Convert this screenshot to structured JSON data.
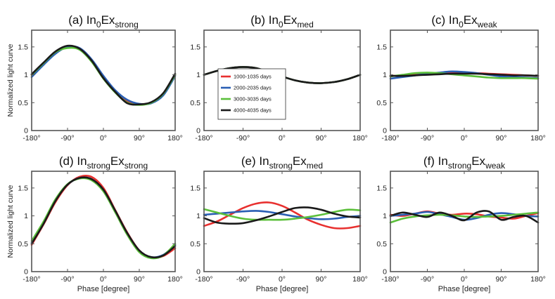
{
  "colors": {
    "series": [
      "#e8302f",
      "#2a5fb4",
      "#5bbf3a",
      "#1a1a1a"
    ],
    "axis": "#555555"
  },
  "legend": [
    "1000-1035 days",
    "2000-2035 days",
    "3000-3035 days",
    "4000-4035 days"
  ],
  "shared_axes": {
    "x_ticks": [
      "-180°",
      "-90°",
      "0°",
      "90°",
      "180°"
    ],
    "x_tick_values": [
      -180,
      -90,
      0,
      90,
      180
    ],
    "y_ticks": [
      "0",
      "0.5",
      "1",
      "1.5"
    ],
    "y_tick_values": [
      0,
      0.5,
      1,
      1.5
    ],
    "xlabel": "Phase [degree]",
    "ylabel": "Normalized light curve"
  },
  "chart_data": [
    {
      "type": "line",
      "title_prefix": "(a) In",
      "title_sub1": "0",
      "title_mid": "Ex",
      "title_sub2": "strong",
      "xlim": [
        -180,
        180
      ],
      "ylim": [
        0,
        1.8
      ],
      "show_ylabel": true,
      "show_xlabel": false,
      "x": [
        -180,
        -150,
        -120,
        -90,
        -60,
        -30,
        0,
        30,
        60,
        90,
        120,
        150,
        180
      ],
      "series": [
        {
          "name": "1000-1035 days",
          "values": [
            1.0,
            1.2,
            1.4,
            1.49,
            1.46,
            1.25,
            0.95,
            0.7,
            0.52,
            0.47,
            0.5,
            0.65,
            1.0
          ]
        },
        {
          "name": "2000-2035 days",
          "values": [
            0.96,
            1.18,
            1.38,
            1.5,
            1.48,
            1.28,
            0.98,
            0.72,
            0.55,
            0.48,
            0.49,
            0.63,
            0.98
          ]
        },
        {
          "name": "3000-3035 days",
          "values": [
            1.0,
            1.21,
            1.41,
            1.48,
            1.45,
            1.24,
            0.93,
            0.68,
            0.5,
            0.46,
            0.5,
            0.66,
            1.0
          ]
        },
        {
          "name": "4000-4035 days",
          "values": [
            1.01,
            1.22,
            1.42,
            1.52,
            1.47,
            1.26,
            0.94,
            0.69,
            0.49,
            0.47,
            0.51,
            0.67,
            1.02
          ]
        }
      ]
    },
    {
      "type": "line",
      "title_prefix": "(b) In",
      "title_sub1": "0",
      "title_mid": "Ex",
      "title_sub2": "med",
      "xlim": [
        -180,
        180
      ],
      "ylim": [
        0,
        1.8
      ],
      "show_ylabel": false,
      "show_xlabel": false,
      "legend": true,
      "x": [
        -180,
        -150,
        -120,
        -90,
        -60,
        -30,
        0,
        30,
        60,
        90,
        120,
        150,
        180
      ],
      "series": [
        {
          "name": "1000-1035 days",
          "values": [
            1.0,
            1.07,
            1.12,
            1.14,
            1.12,
            1.05,
            0.97,
            0.9,
            0.86,
            0.85,
            0.87,
            0.92,
            1.0
          ]
        },
        {
          "name": "2000-2035 days",
          "values": [
            1.0,
            1.07,
            1.12,
            1.14,
            1.12,
            1.05,
            0.97,
            0.9,
            0.86,
            0.85,
            0.87,
            0.92,
            1.0
          ]
        },
        {
          "name": "3000-3035 days",
          "values": [
            1.0,
            1.07,
            1.12,
            1.14,
            1.12,
            1.05,
            0.97,
            0.9,
            0.86,
            0.85,
            0.87,
            0.92,
            1.0
          ]
        },
        {
          "name": "4000-4035 days",
          "values": [
            1.0,
            1.07,
            1.12,
            1.14,
            1.12,
            1.05,
            0.97,
            0.9,
            0.86,
            0.85,
            0.87,
            0.92,
            1.0
          ]
        }
      ]
    },
    {
      "type": "line",
      "title_prefix": "(c) In",
      "title_sub1": "0",
      "title_mid": "Ex",
      "title_sub2": "weak",
      "xlim": [
        -180,
        180
      ],
      "ylim": [
        0,
        1.8
      ],
      "show_ylabel": false,
      "show_xlabel": false,
      "x": [
        -180,
        -150,
        -120,
        -90,
        -60,
        -30,
        0,
        30,
        60,
        90,
        120,
        150,
        180
      ],
      "series": [
        {
          "name": "1000-1035 days",
          "values": [
            0.98,
            0.99,
            1.01,
            1.02,
            1.03,
            1.04,
            1.04,
            1.03,
            1.02,
            1.01,
            1.0,
            0.99,
            0.98
          ]
        },
        {
          "name": "2000-2035 days",
          "values": [
            0.93,
            0.96,
            0.99,
            1.02,
            1.04,
            1.06,
            1.05,
            1.03,
            1.0,
            0.97,
            0.96,
            0.95,
            0.94
          ]
        },
        {
          "name": "3000-3035 days",
          "values": [
            0.97,
            1.0,
            1.03,
            1.04,
            1.03,
            1.01,
            0.99,
            0.97,
            0.95,
            0.94,
            0.94,
            0.94,
            0.93
          ]
        },
        {
          "name": "4000-4035 days",
          "values": [
            0.98,
            0.98,
            0.99,
            1.0,
            1.01,
            1.02,
            1.02,
            1.02,
            1.01,
            1.0,
            0.99,
            0.99,
            0.98
          ]
        }
      ]
    },
    {
      "type": "line",
      "title_prefix": "(d) In",
      "title_sub1": "strong",
      "title_mid": "Ex",
      "title_sub2": "strong",
      "xlim": [
        -180,
        180
      ],
      "ylim": [
        0,
        1.8
      ],
      "show_ylabel": true,
      "show_xlabel": false,
      "x": [
        -180,
        -150,
        -120,
        -90,
        -60,
        -30,
        0,
        30,
        60,
        90,
        120,
        150,
        180
      ],
      "series": [
        {
          "name": "1000-1035 days",
          "values": [
            0.48,
            0.85,
            1.25,
            1.55,
            1.7,
            1.7,
            1.5,
            1.1,
            0.7,
            0.38,
            0.25,
            0.28,
            0.42
          ]
        },
        {
          "name": "2000-2035 days",
          "values": [
            0.52,
            0.88,
            1.28,
            1.56,
            1.68,
            1.66,
            1.46,
            1.08,
            0.68,
            0.37,
            0.26,
            0.3,
            0.48
          ]
        },
        {
          "name": "3000-3035 days",
          "values": [
            0.55,
            0.9,
            1.3,
            1.57,
            1.67,
            1.64,
            1.44,
            1.06,
            0.66,
            0.35,
            0.24,
            0.29,
            0.5
          ]
        },
        {
          "name": "4000-4035 days",
          "values": [
            0.5,
            0.86,
            1.27,
            1.56,
            1.68,
            1.66,
            1.47,
            1.09,
            0.69,
            0.38,
            0.26,
            0.29,
            0.46
          ]
        }
      ]
    },
    {
      "type": "line",
      "title_prefix": "(e) In",
      "title_sub1": "strong",
      "title_mid": "Ex",
      "title_sub2": "med",
      "xlim": [
        -180,
        180
      ],
      "ylim": [
        0,
        1.8
      ],
      "show_ylabel": false,
      "show_xlabel": true,
      "x": [
        -180,
        -150,
        -120,
        -90,
        -60,
        -30,
        0,
        30,
        60,
        90,
        120,
        150,
        180
      ],
      "series": [
        {
          "name": "1000-1035 days",
          "values": [
            0.82,
            0.9,
            1.02,
            1.14,
            1.22,
            1.24,
            1.18,
            1.06,
            0.93,
            0.84,
            0.78,
            0.78,
            0.82
          ]
        },
        {
          "name": "2000-2035 days",
          "values": [
            1.02,
            1.04,
            1.06,
            1.08,
            1.09,
            1.07,
            1.03,
            0.99,
            0.96,
            0.94,
            0.95,
            0.98,
            1.0
          ]
        },
        {
          "name": "3000-3035 days",
          "values": [
            1.12,
            1.06,
            1.0,
            0.95,
            0.93,
            0.93,
            0.93,
            0.95,
            0.98,
            1.02,
            1.07,
            1.11,
            1.1
          ]
        },
        {
          "name": "4000-4035 days",
          "values": [
            0.96,
            0.88,
            0.86,
            0.87,
            0.92,
            0.99,
            1.07,
            1.14,
            1.15,
            1.11,
            1.04,
            0.99,
            0.97
          ]
        }
      ]
    },
    {
      "type": "line",
      "title_prefix": "(f) In",
      "title_sub1": "strong",
      "title_mid": "Ex",
      "title_sub2": "weak",
      "xlim": [
        -180,
        180
      ],
      "ylim": [
        0,
        1.8
      ],
      "show_ylabel": false,
      "show_xlabel": true,
      "x": [
        -180,
        -150,
        -120,
        -90,
        -60,
        -30,
        0,
        30,
        60,
        90,
        120,
        150,
        180
      ],
      "series": [
        {
          "name": "1000-1035 days",
          "values": [
            1.02,
            1.0,
            1.04,
            1.08,
            1.04,
            1.02,
            1.04,
            1.03,
            0.99,
            0.97,
            0.95,
            1.0,
            1.05
          ]
        },
        {
          "name": "2000-2035 days",
          "values": [
            1.0,
            1.02,
            1.04,
            1.07,
            1.03,
            0.98,
            0.93,
            0.96,
            1.02,
            1.05,
            1.03,
            1.0,
            0.99
          ]
        },
        {
          "name": "3000-3035 days",
          "values": [
            0.88,
            0.95,
            0.99,
            1.01,
            1.02,
            1.01,
            0.99,
            0.98,
            0.99,
            1.0,
            1.02,
            1.04,
            1.06
          ]
        },
        {
          "name": "4000-4035 days",
          "values": [
            1.0,
            1.06,
            1.02,
            0.98,
            1.06,
            1.0,
            0.92,
            1.06,
            1.08,
            0.93,
            0.98,
            1.0,
            0.88
          ]
        }
      ]
    }
  ]
}
